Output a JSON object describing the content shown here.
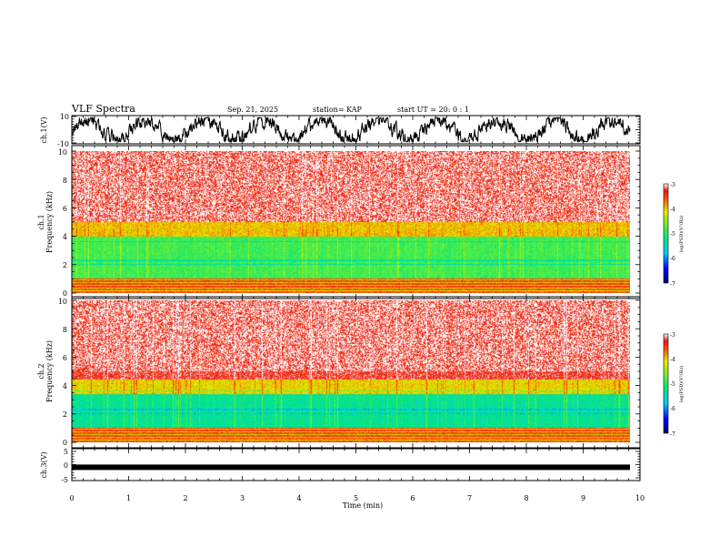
{
  "header": {
    "title": "VLF Spectra",
    "date": "Sep. 21, 2025",
    "station": "station= KAP",
    "start": "start  UT =   20: 0  : 1"
  },
  "chart_data": [
    {
      "type": "line",
      "name": "ch1-waveform",
      "ylabel": "ch.1(V)",
      "ylim": [
        -10,
        10
      ],
      "yticks": [
        "10",
        "-10"
      ],
      "xlim": [
        0,
        10
      ],
      "description_series": "noisy oscillating voltage trace, roughly -8..8 V"
    },
    {
      "type": "heatmap",
      "name": "ch1-spectrogram",
      "ylabel_top": "ch.1",
      "ylabel": "Frequency (kHz)",
      "ylim": [
        0,
        10
      ],
      "yticks": [
        "0",
        "2",
        "4",
        "6",
        "8",
        "10"
      ],
      "xlim": [
        0,
        9.8
      ],
      "colorbar": {
        "label": "log(PSD)(V²/Hz)",
        "range": [
          -7,
          -3
        ],
        "ticks": [
          "-3",
          "-4",
          "-5",
          "-6",
          "-7"
        ]
      },
      "bands": [
        {
          "from_khz": 0.0,
          "to_khz": 0.3,
          "level": -3.6
        },
        {
          "from_khz": 0.3,
          "to_khz": 1.0,
          "level": -3.5
        },
        {
          "from_khz": 1.0,
          "to_khz": 4.0,
          "level": -4.9
        },
        {
          "from_khz": 4.0,
          "to_khz": 5.0,
          "level": -4.0
        },
        {
          "from_khz": 5.0,
          "to_khz": 10.0,
          "level": -3.3
        }
      ]
    },
    {
      "type": "heatmap",
      "name": "ch2-spectrogram",
      "ylabel_top": "ch.2",
      "ylabel": "Frequency (kHz)",
      "ylim": [
        0,
        10
      ],
      "yticks": [
        "0",
        "2",
        "4",
        "6",
        "8",
        "10"
      ],
      "xlim": [
        0,
        9.8
      ],
      "colorbar": {
        "label": "log(PSD)(V²/Hz)",
        "range": [
          -7,
          -3
        ],
        "ticks": [
          "-3",
          "-4",
          "-5",
          "-6",
          "-7"
        ]
      },
      "bands": [
        {
          "from_khz": 0.0,
          "to_khz": 0.3,
          "level": -3.6
        },
        {
          "from_khz": 0.3,
          "to_khz": 1.0,
          "level": -3.5
        },
        {
          "from_khz": 1.0,
          "to_khz": 3.4,
          "level": -5.3
        },
        {
          "from_khz": 3.4,
          "to_khz": 4.4,
          "level": -4.1
        },
        {
          "from_khz": 4.4,
          "to_khz": 10.0,
          "level": -3.3
        }
      ]
    },
    {
      "type": "line",
      "name": "ch3-waveform",
      "ylabel": "ch.3(V)",
      "ylim": [
        -5,
        5
      ],
      "yticks": [
        "5",
        "0",
        "-5"
      ],
      "xlim": [
        0,
        10
      ],
      "level_v": -1.0
    }
  ],
  "xaxis": {
    "label": "Time (min)",
    "ticks": [
      "0",
      "1",
      "2",
      "3",
      "4",
      "5",
      "6",
      "7",
      "8",
      "9",
      "10"
    ],
    "range": [
      0,
      10
    ]
  }
}
